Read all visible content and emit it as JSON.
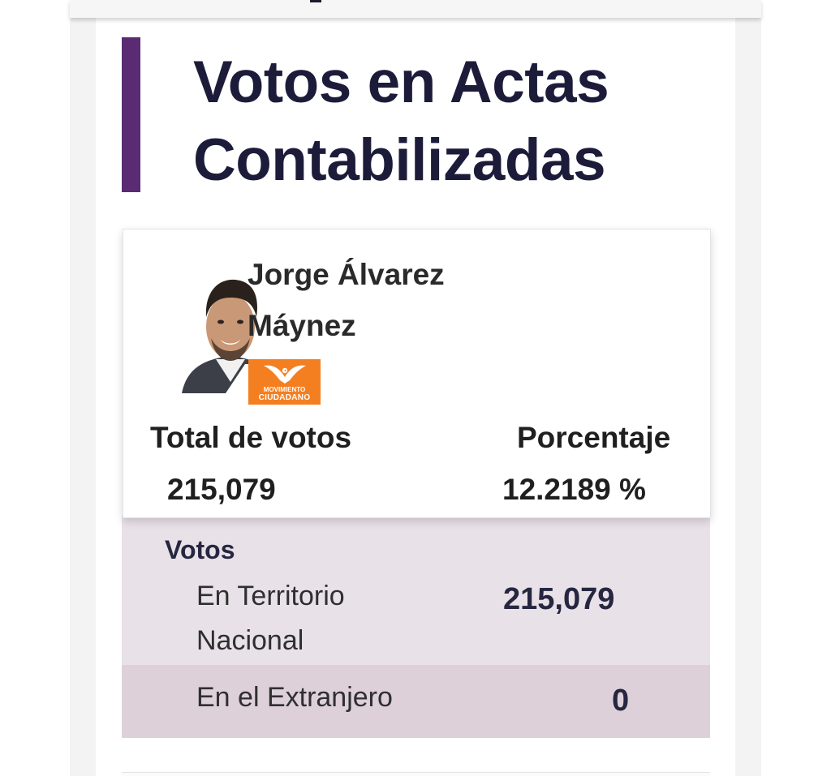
{
  "title": "Votos en Actas Contabilizadas",
  "accent_color": "#5a2a73",
  "candidate": {
    "name": "Jorge Álvarez Máynez",
    "photo_icon": "candidate-photo",
    "party": {
      "label_line1": "MOVIMIENTO",
      "label_line2": "CIUDADANO",
      "color": "#f47f20"
    }
  },
  "totals": {
    "total_label": "Total de votos",
    "total_value": "215,079",
    "percent_label": "Porcentaje",
    "percent_value": "12.2189 %"
  },
  "breakdown": {
    "heading": "Votos",
    "rows": [
      {
        "label": "En Territorio Nacional",
        "value": "215,079"
      },
      {
        "label": "En el Extranjero",
        "value": "0"
      }
    ]
  }
}
